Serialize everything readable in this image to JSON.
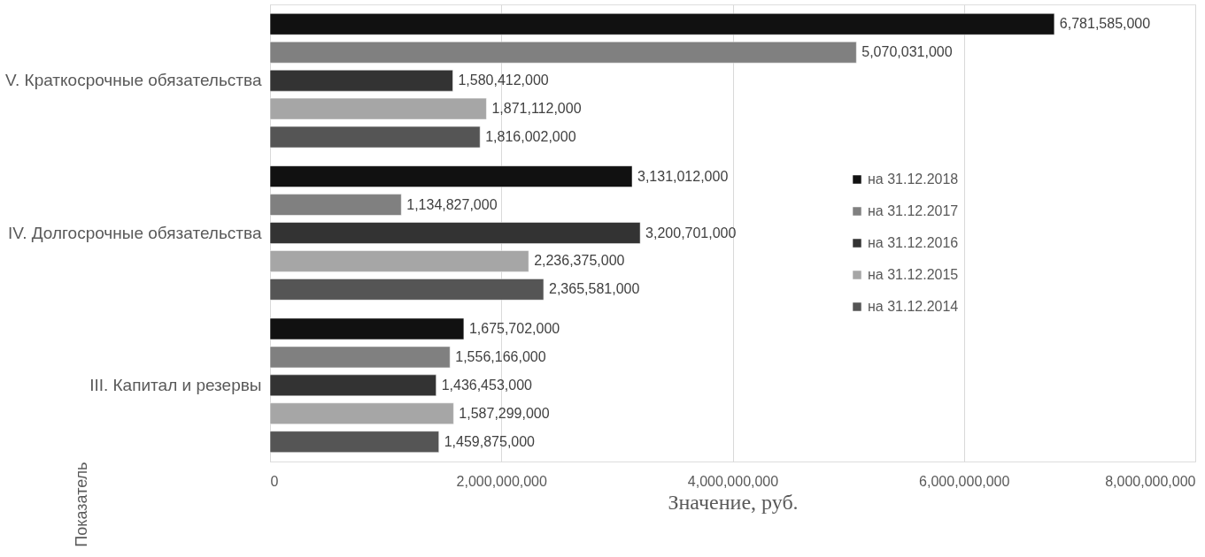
{
  "chart_data": {
    "type": "bar",
    "orientation": "horizontal",
    "xlabel": "Значение, руб.",
    "ylabel": "Показатель",
    "categories": [
      "V. Краткосрочные обязательства",
      "IV. Долгосрочные обязательства",
      "III. Капитал и резервы"
    ],
    "series": [
      {
        "name": "на 31.12.2018",
        "color": "#111111",
        "values": [
          6781585000,
          3131012000,
          1675702000
        ],
        "value_labels": [
          "6,781,585,000",
          "3,131,012,000",
          "1,675,702,000"
        ]
      },
      {
        "name": "на 31.12.2017",
        "color": "#808080",
        "values": [
          5070031000,
          1134827000,
          1556166000
        ],
        "value_labels": [
          "5,070,031,000",
          "1,134,827,000",
          "1,556,166,000"
        ]
      },
      {
        "name": "на 31.12.2016",
        "color": "#333333",
        "values": [
          1580412000,
          3200701000,
          1436453000
        ],
        "value_labels": [
          "1,580,412,000",
          "3,200,701,000",
          "1,436,453,000"
        ]
      },
      {
        "name": "на 31.12.2015",
        "color": "#a6a6a6",
        "values": [
          1871112000,
          2236375000,
          1587299000
        ],
        "value_labels": [
          "1,871,112,000",
          "2,236,375,000",
          "1,587,299,000"
        ]
      },
      {
        "name": "на 31.12.2014",
        "color": "#555555",
        "values": [
          1816002000,
          2365581000,
          1459875000
        ],
        "value_labels": [
          "1,816,002,000",
          "2,365,581,000",
          "1,459,875,000"
        ]
      }
    ],
    "xlim": [
      0,
      8000000000
    ],
    "xticks": [
      0,
      {
        "value": 2000000000,
        "label": "2,000,000,000"
      },
      {
        "value": 4000000000,
        "label": "4,000,000,000"
      },
      {
        "value": 6000000000,
        "label": "6,000,000,000"
      },
      {
        "value": 8000000000,
        "label": "8,000,000,000"
      }
    ],
    "grid": "x",
    "legend": "right"
  }
}
